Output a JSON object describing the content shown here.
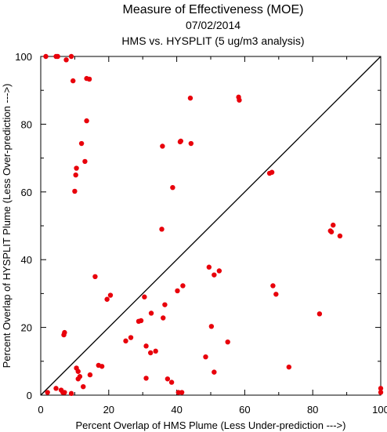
{
  "chart_data": {
    "type": "scatter",
    "title": "Measure of Effectiveness (MOE)",
    "subtitle": "07/02/2014",
    "subtitle2": "HMS vs. HYSPLIT  (5 ug/m3 analysis)",
    "xlabel": "Percent Overlap of HMS Plume (Less Under-prediction --->)",
    "ylabel": "Percent Overlap of HYSPLIT Plume (Less Over-prediction --->)",
    "xlim": [
      0,
      100
    ],
    "ylim": [
      0,
      100
    ],
    "xticks": [
      "0",
      "20",
      "40",
      "60",
      "80",
      "100"
    ],
    "yticks": [
      "0",
      "20",
      "40",
      "60",
      "80",
      "100"
    ],
    "grid": false,
    "reference_line": "y = x diagonal",
    "marker_color": "#e8000b",
    "line_color": "#000000",
    "points": [
      [
        1.5,
        100
      ],
      [
        4.5,
        100
      ],
      [
        5,
        100
      ],
      [
        7.5,
        99
      ],
      [
        9,
        100
      ],
      [
        9.5,
        92.8
      ],
      [
        13.5,
        93.5
      ],
      [
        14.3,
        93.3
      ],
      [
        13.5,
        81
      ],
      [
        12,
        74.3
      ],
      [
        13,
        69
      ],
      [
        10.5,
        67
      ],
      [
        10.3,
        65
      ],
      [
        10,
        60.2
      ],
      [
        16,
        35
      ],
      [
        20.5,
        29.5
      ],
      [
        19.5,
        28.3
      ],
      [
        29.5,
        22
      ],
      [
        28.8,
        21.8
      ],
      [
        6.8,
        17.8
      ],
      [
        7,
        18.5
      ],
      [
        25,
        16
      ],
      [
        26.5,
        17
      ],
      [
        10.5,
        8
      ],
      [
        11,
        7
      ],
      [
        11.5,
        5.5
      ],
      [
        11,
        4.8
      ],
      [
        17,
        8.8
      ],
      [
        18,
        8.5
      ],
      [
        14.5,
        6
      ],
      [
        12.5,
        2.5
      ],
      [
        2,
        0.8
      ],
      [
        4.5,
        2
      ],
      [
        6,
        1.5
      ],
      [
        6.5,
        0.8
      ],
      [
        7,
        0.8
      ],
      [
        9,
        0.5
      ],
      [
        30.5,
        29
      ],
      [
        31,
        14.5
      ],
      [
        32.3,
        12.5
      ],
      [
        33.8,
        13
      ],
      [
        31,
        5
      ],
      [
        32.5,
        24.2
      ],
      [
        36,
        22.8
      ],
      [
        36.5,
        26.7
      ],
      [
        35.6,
        49
      ],
      [
        35.8,
        73.5
      ],
      [
        38.8,
        61.3
      ],
      [
        41.2,
        75
      ],
      [
        41,
        74.8
      ],
      [
        44.2,
        74.3
      ],
      [
        44,
        87.7
      ],
      [
        40.2,
        30.8
      ],
      [
        41.8,
        32.3
      ],
      [
        37.3,
        4.8
      ],
      [
        38.5,
        3.8
      ],
      [
        40.5,
        0.8
      ],
      [
        41.5,
        0.8
      ],
      [
        49.5,
        37.8
      ],
      [
        51,
        35.5
      ],
      [
        52.5,
        36.7
      ],
      [
        50.2,
        20.3
      ],
      [
        48.5,
        11.3
      ],
      [
        55,
        15.7
      ],
      [
        51,
        6.8
      ],
      [
        58.2,
        88
      ],
      [
        58.4,
        87.1
      ],
      [
        67.3,
        65.5
      ],
      [
        68,
        65.8
      ],
      [
        68.3,
        32.3
      ],
      [
        69.2,
        29.8
      ],
      [
        73,
        8.3
      ],
      [
        82,
        24
      ],
      [
        85.2,
        48.5
      ],
      [
        85.5,
        48.2
      ],
      [
        86,
        50.2
      ],
      [
        88,
        47
      ],
      [
        100,
        2
      ],
      [
        100,
        0.8
      ]
    ]
  }
}
